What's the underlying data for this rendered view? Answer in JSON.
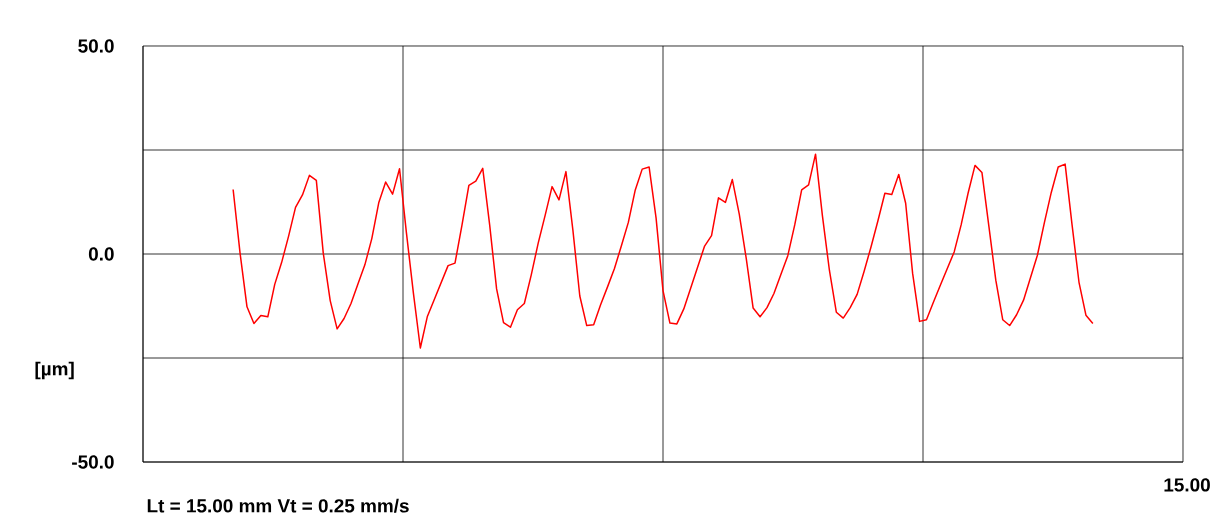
{
  "chart_data": {
    "type": "line",
    "ylabel": "[µm]",
    "annotations": [
      "Lt = 15.00  mm    Vt = 0.25  mm/s",
      "15.00"
    ],
    "tick_labels": "y",
    "categories": [
      null,
      null,
      null,
      null,
      null,
      null,
      null,
      null,
      null,
      null,
      null,
      null,
      null,
      null,
      null,
      null,
      null,
      null,
      null,
      null,
      null,
      null,
      null,
      null,
      null,
      null,
      null,
      null,
      null,
      null,
      null,
      null,
      null,
      null,
      null,
      null,
      null,
      null,
      null,
      null,
      null,
      null,
      null,
      null,
      null,
      null,
      null,
      null,
      null,
      null,
      null,
      null,
      null,
      null,
      null,
      null,
      null,
      null,
      null,
      null,
      null,
      null,
      null,
      null,
      null,
      null,
      null,
      null,
      null,
      null,
      null,
      null,
      null,
      null,
      null,
      null,
      null,
      null,
      null,
      null,
      null,
      null,
      null,
      null,
      null,
      null,
      null,
      null,
      null,
      null,
      null,
      null,
      null,
      null,
      null,
      null,
      null,
      null,
      null,
      null,
      null,
      null,
      null,
      null,
      null,
      null,
      null,
      null,
      null,
      null,
      null,
      null,
      null,
      null,
      null,
      null,
      null,
      null,
      null,
      null,
      null,
      null,
      null,
      null,
      null,
      null,
      null,
      null,
      null,
      null,
      null,
      null,
      null,
      null,
      null,
      null,
      null,
      null,
      null,
      null,
      null,
      null,
      null,
      null,
      null,
      null,
      null,
      null,
      null,
      null,
      null
    ],
    "ylim": [
      -50,
      50
    ],
    "yticks": [
      {
        "value": -50,
        "label": "-50.0"
      },
      {
        "value": -25,
        "label": null
      },
      {
        "value": 0,
        "label": "0.0"
      },
      {
        "value": 25,
        "label": null
      },
      {
        "value": 50,
        "label": "50.0"
      }
    ],
    "grid": true,
    "marker": "none",
    "line_style": "solid",
    "series": [
      {
        "color": "#ff0000",
        "values": [
          null,
          null,
          null,
          null,
          null,
          null,
          null,
          null,
          null,
          null,
          null,
          null,
          null,
          15.5,
          0.2,
          -12.7,
          -16.7,
          -14.8,
          -15.1,
          -7.3,
          -2.0,
          4.3,
          11.2,
          14.2,
          18.9,
          17.7,
          0.2,
          -11.2,
          -18.0,
          -15.5,
          -11.9,
          -7.2,
          -2.6,
          3.7,
          12.3,
          17.3,
          14.4,
          20.5,
          5.0,
          -9.4,
          -22.6,
          -15.1,
          -11.0,
          -6.9,
          -2.8,
          -2.2,
          6.9,
          16.5,
          17.5,
          20.6,
          7.0,
          -8.4,
          -16.5,
          -17.6,
          -13.4,
          -11.9,
          -5.0,
          2.6,
          9.3,
          16.2,
          13.0,
          19.8,
          5.8,
          -10.1,
          -17.2,
          -17.0,
          -12.2,
          -7.9,
          -3.5,
          2.0,
          7.6,
          15.4,
          20.4,
          20.9,
          8.7,
          -8.8,
          -16.6,
          -16.8,
          -13.2,
          -8.2,
          -3.1,
          1.9,
          4.4,
          13.5,
          12.4,
          17.9,
          9.6,
          -1.0,
          -13.0,
          -15.1,
          -12.9,
          -9.5,
          -4.9,
          -0.4,
          7.0,
          15.4,
          16.6,
          24.0,
          9.1,
          -3.9,
          -14.0,
          -15.4,
          -12.9,
          -9.7,
          -4.2,
          1.7,
          8.0,
          14.6,
          14.3,
          19.1,
          12.2,
          -4.6,
          -16.2,
          -15.8,
          -11.6,
          -7.5,
          -3.5,
          0.5,
          7.0,
          14.6,
          21.3,
          19.6,
          6.7,
          -6.3,
          -15.8,
          -17.2,
          -14.6,
          -11.1,
          -5.7,
          -0.3,
          7.5,
          14.8,
          20.9,
          21.6,
          7.0,
          -6.8,
          -14.7,
          -16.7,
          null,
          null,
          null,
          null,
          null,
          null,
          null,
          null,
          null,
          null,
          null,
          null,
          null
        ]
      }
    ]
  }
}
